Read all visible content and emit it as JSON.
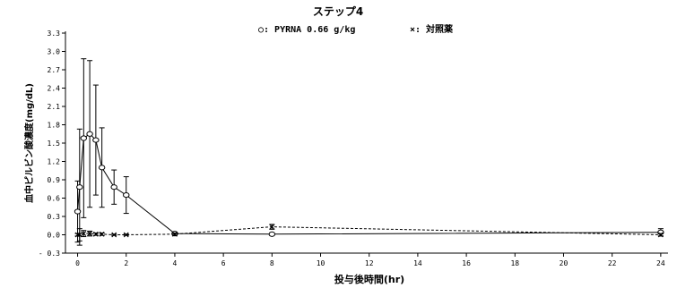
{
  "chart_data": {
    "type": "line",
    "title": "ステップ4",
    "xlabel": "投与後時間(hr)",
    "ylabel": "血中ピルビン酸濃度(mg/dL)",
    "xlim": [
      -0.5,
      24.3
    ],
    "ylim": [
      -0.3,
      3.3
    ],
    "x_ticks": [
      0,
      2,
      4,
      6,
      8,
      10,
      12,
      14,
      16,
      18,
      20,
      22,
      24
    ],
    "y_ticks": [
      -0.3,
      0.0,
      0.3,
      0.6,
      0.9,
      1.2,
      1.5,
      1.8,
      2.1,
      2.4,
      2.7,
      3.0,
      3.3
    ],
    "y_tick_labels": [
      "- 0.3",
      "0.0",
      "0.3",
      "0.6",
      "0.9",
      "1.2",
      "1.5",
      "1.8",
      "2.1",
      "2.4",
      "2.7",
      "3.0",
      "3.3"
    ],
    "grid": false,
    "legend_position": "top-center",
    "series": [
      {
        "name": "PYRNA 0.66 g/kg",
        "legend_label": "○: PYRNA 0.66 g/kg",
        "marker": "circle",
        "line_style": "solid",
        "x": [
          0,
          0.083,
          0.25,
          0.5,
          0.75,
          1,
          1.5,
          2,
          4,
          8,
          24
        ],
        "y": [
          0.38,
          0.78,
          1.58,
          1.65,
          1.55,
          1.1,
          0.78,
          0.65,
          0.02,
          0.01,
          0.04
        ],
        "err": [
          0.5,
          0.95,
          1.3,
          1.2,
          0.9,
          0.65,
          0.28,
          0.3,
          0.02,
          0.02,
          0.06
        ]
      },
      {
        "name": "対照薬",
        "legend_label": "×: 対照薬",
        "marker": "x",
        "line_style": "dashed",
        "x": [
          0,
          0.083,
          0.25,
          0.5,
          0.75,
          1,
          1.5,
          2,
          4,
          8,
          24
        ],
        "y": [
          0.0,
          0.0,
          0.02,
          0.02,
          0.01,
          0.01,
          0.0,
          0.0,
          0.01,
          0.13,
          0.0
        ],
        "err": [
          0.02,
          0.1,
          0.05,
          0.04,
          0.02,
          0.02,
          0.01,
          0.01,
          0.02,
          0.04,
          0.02
        ]
      }
    ]
  }
}
